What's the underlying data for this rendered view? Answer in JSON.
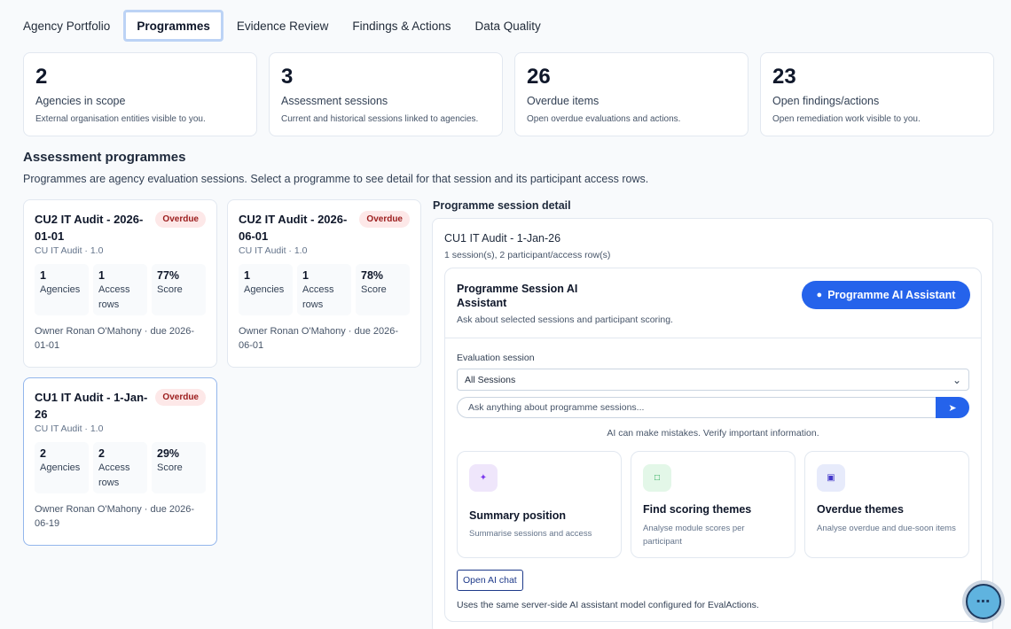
{
  "tabs": [
    {
      "label": "Agency Portfolio",
      "active": false
    },
    {
      "label": "Programmes",
      "active": true
    },
    {
      "label": "Evidence Review",
      "active": false
    },
    {
      "label": "Findings & Actions",
      "active": false
    },
    {
      "label": "Data Quality",
      "active": false
    }
  ],
  "kpis": [
    {
      "value": "2",
      "label": "Agencies in scope",
      "desc": "External organisation entities visible to you."
    },
    {
      "value": "3",
      "label": "Assessment sessions",
      "desc": "Current and historical sessions linked to agencies."
    },
    {
      "value": "26",
      "label": "Overdue items",
      "desc": "Open overdue evaluations and actions."
    },
    {
      "value": "23",
      "label": "Open findings/actions",
      "desc": "Open remediation work visible to you."
    }
  ],
  "section": {
    "title": "Assessment programmes",
    "desc": "Programmes are agency evaluation sessions. Select a programme to see detail for that session and its participant access rows."
  },
  "programmes": [
    {
      "title": "CU2 IT Audit - 2026-01-01",
      "badge": "Overdue",
      "sub": "CU IT Audit · 1.0",
      "stats": [
        {
          "value": "1",
          "label": "Agencies"
        },
        {
          "value": "1",
          "label": "Access rows"
        },
        {
          "value": "77%",
          "label": "Score"
        }
      ],
      "owner": "Owner Ronan O'Mahony · due 2026-01-01"
    },
    {
      "title": "CU2 IT Audit - 2026-06-01",
      "badge": "Overdue",
      "sub": "CU IT Audit · 1.0",
      "stats": [
        {
          "value": "1",
          "label": "Agencies"
        },
        {
          "value": "1",
          "label": "Access rows"
        },
        {
          "value": "78%",
          "label": "Score"
        }
      ],
      "owner": "Owner Ronan O'Mahony · due 2026-06-01"
    },
    {
      "title": "CU1 IT Audit - 1-Jan-26",
      "badge": "Overdue",
      "sub": "CU IT Audit · 1.0",
      "stats": [
        {
          "value": "2",
          "label": "Agencies"
        },
        {
          "value": "2",
          "label": "Access rows"
        },
        {
          "value": "29%",
          "label": "Score"
        }
      ],
      "owner": "Owner Ronan O'Mahony · due 2026-06-19"
    }
  ],
  "detail": {
    "heading": "Programme session detail",
    "title": "CU1 IT Audit - 1-Jan-26",
    "sub": "1 session(s), 2 participant/access row(s)"
  },
  "ai": {
    "title": "Programme Session AI Assistant",
    "sub": "Ask about selected sessions and participant scoring.",
    "button_label": "Programme AI Assistant",
    "field_label": "Evaluation session",
    "select_value": "All Sessions",
    "ask_placeholder": "Ask anything about programme sessions...",
    "disclaimer": "AI can make mistakes. Verify important information.",
    "suggestions": [
      {
        "title": "Summary position",
        "desc": "Summarise sessions and access",
        "icon": "sparkle-icon"
      },
      {
        "title": "Find scoring themes",
        "desc": "Analyse module scores per participant",
        "icon": "square-icon"
      },
      {
        "title": "Overdue themes",
        "desc": "Analyse overdue and due-soon items",
        "icon": "square-dot-icon"
      }
    ],
    "open_chat_label": "Open AI chat",
    "footer_note": "Uses the same server-side AI assistant model configured for EvalActions."
  },
  "colors": {
    "accent": "#2563eb",
    "overdue_bg": "#fde8e8",
    "overdue_text": "#9b1c1c"
  }
}
